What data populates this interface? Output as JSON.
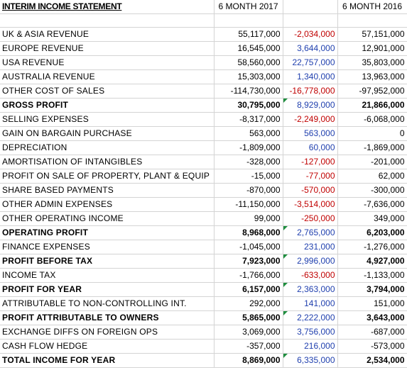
{
  "header": {
    "title": "INTERIM INCOME STATEMENT",
    "col_2017": "6 MONTH 2017",
    "col_2016": "6 MONTH 2016"
  },
  "rows": [
    {
      "label": "UK & ASIA REVENUE",
      "v2017": "55,117,000",
      "diff": "-2,034,000",
      "v2016": "57,151,000"
    },
    {
      "label": "EUROPE REVENUE",
      "v2017": "16,545,000",
      "diff": "3,644,000",
      "v2016": "12,901,000"
    },
    {
      "label": "USA REVENUE",
      "v2017": "58,560,000",
      "diff": "22,757,000",
      "v2016": "35,803,000"
    },
    {
      "label": "AUSTRALIA REVENUE",
      "v2017": "15,303,000",
      "diff": "1,340,000",
      "v2016": "13,963,000"
    },
    {
      "label": "OTHER COST OF SALES",
      "v2017": "-114,730,000",
      "diff": "-16,778,000",
      "v2016": "-97,952,000"
    },
    {
      "label": "GROSS PROFIT",
      "v2017": "30,795,000",
      "diff": "8,929,000",
      "v2016": "21,866,000"
    },
    {
      "label": "SELLING EXPENSES",
      "v2017": "-8,317,000",
      "diff": "-2,249,000",
      "v2016": "-6,068,000"
    },
    {
      "label": "GAIN ON BARGAIN PURCHASE",
      "v2017": "563,000",
      "diff": "563,000",
      "v2016": "0"
    },
    {
      "label": "DEPRECIATION",
      "v2017": "-1,809,000",
      "diff": "60,000",
      "v2016": "-1,869,000"
    },
    {
      "label": "AMORTISATION OF INTANGIBLES",
      "v2017": "-328,000",
      "diff": "-127,000",
      "v2016": "-201,000"
    },
    {
      "label": "PROFIT ON SALE OF PROPERTY, PLANT & EQUIP",
      "v2017": "-15,000",
      "diff": "-77,000",
      "v2016": "62,000"
    },
    {
      "label": "SHARE BASED PAYMENTS",
      "v2017": "-870,000",
      "diff": "-570,000",
      "v2016": "-300,000"
    },
    {
      "label": "OTHER ADMIN EXPENSES",
      "v2017": "-11,150,000",
      "diff": "-3,514,000",
      "v2016": "-7,636,000"
    },
    {
      "label": "OTHER OPERATING INCOME",
      "v2017": "99,000",
      "diff": "-250,000",
      "v2016": "349,000"
    },
    {
      "label": "OPERATING PROFIT",
      "v2017": "8,968,000",
      "diff": "2,765,000",
      "v2016": "6,203,000"
    },
    {
      "label": "FINANCE EXPENSES",
      "v2017": "-1,045,000",
      "diff": "231,000",
      "v2016": "-1,276,000"
    },
    {
      "label": "PROFIT BEFORE TAX",
      "v2017": "7,923,000",
      "diff": "2,996,000",
      "v2016": "4,927,000"
    },
    {
      "label": "INCOME TAX",
      "v2017": "-1,766,000",
      "diff": "-633,000",
      "v2016": "-1,133,000"
    },
    {
      "label": "PROFIT FOR YEAR",
      "v2017": "6,157,000",
      "diff": "2,363,000",
      "v2016": "3,794,000"
    },
    {
      "label": "ATTRIBUTABLE TO NON-CONTROLLING INT.",
      "v2017": "292,000",
      "diff": "141,000",
      "v2016": "151,000"
    },
    {
      "label": "PROFIT ATTRIBUTABLE TO OWNERS",
      "v2017": "5,865,000",
      "diff": "2,222,000",
      "v2016": "3,643,000"
    },
    {
      "label": "EXCHANGE DIFFS ON FOREIGN OPS",
      "v2017": "3,069,000",
      "diff": "3,756,000",
      "v2016": "-687,000"
    },
    {
      "label": "CASH FLOW HEDGE",
      "v2017": "-357,000",
      "diff": "216,000",
      "v2016": "-573,000"
    },
    {
      "label": "TOTAL INCOME FOR YEAR",
      "v2017": "8,869,000",
      "diff": "6,335,000",
      "v2016": "2,534,000"
    }
  ],
  "colors": {
    "negative_diff": "#c00000",
    "positive_diff": "#1f3fae",
    "comment_marker": "#1e8e3e",
    "gridline": "#d4d4d4"
  }
}
